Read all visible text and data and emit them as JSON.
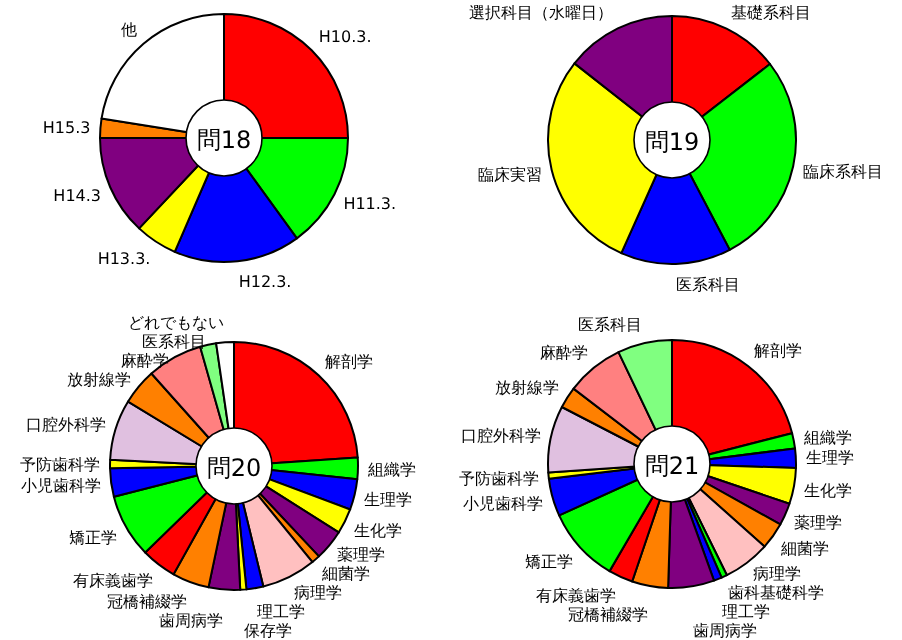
{
  "chart_data": [
    {
      "type": "donut",
      "title": "問18",
      "categories": [
        "H10.3.",
        "H11.3.",
        "H12.3.",
        "H13.3.",
        "H14.3",
        "H15.3",
        "他"
      ],
      "values": [
        25,
        15,
        16.5,
        5.5,
        13,
        2.5,
        22.5
      ],
      "colors": [
        "#ff0000",
        "#00ff00",
        "#0000ff",
        "#ffff00",
        "#800080",
        "#ff8000",
        "#ffffff"
      ]
    },
    {
      "type": "donut",
      "title": "問19",
      "categories": [
        "基礎系科目",
        "臨床系科目",
        "医系科目",
        "臨床実習",
        "選択科目（水曜日）"
      ],
      "values": [
        14.5,
        27.8,
        14.4,
        28.9,
        14.4
      ],
      "colors": [
        "#ff0000",
        "#00ff00",
        "#0000ff",
        "#ffff00",
        "#800080"
      ]
    },
    {
      "type": "donut",
      "title": "問20",
      "categories": [
        "解剖学",
        "組織学",
        "生理学",
        "生化学",
        "薬理学",
        "細菌学",
        "病理学",
        "理工学",
        "保存学",
        "歯周病学",
        "冠橋補綴学",
        "有床義歯学",
        "矯正学",
        "小児歯科学",
        "予防歯科学",
        "口腔外科学",
        "放射線学",
        "麻酔学",
        "医系科目",
        "どれでもない"
      ],
      "values": [
        23.9,
        2.8,
        4,
        3.3,
        4,
        1.1,
        7.1,
        2.2,
        0.8,
        4.1,
        4.8,
        4.6,
        8.3,
        3.7,
        1.1,
        7.9,
        4.7,
        7.2,
        2.1,
        2.3
      ],
      "colors": [
        "#ff0000",
        "#00ff00",
        "#0000ff",
        "#ffff00",
        "#800080",
        "#ff8000",
        "#ffc0c0",
        "#0000ff",
        "#ffff00",
        "#800080",
        "#ff8000",
        "#ff0000",
        "#00ff00",
        "#0000ff",
        "#ffff00",
        "#e0c0e0",
        "#ff8000",
        "#ff8080",
        "#80ff80",
        "#ffffff"
      ]
    },
    {
      "type": "donut",
      "title": "問21",
      "categories": [
        "解剖学",
        "組織学",
        "生理学",
        "生化学",
        "薬理学",
        "細菌学",
        "病理学",
        "歯科基礎科学",
        "理工学",
        "歯周病学",
        "冠橋補綴学",
        "有床義歯学",
        "矯正学",
        "小児歯科学",
        "予防歯科学",
        "口腔外科学",
        "放射線学",
        "麻酔学",
        "医系科目"
      ],
      "values": [
        21,
        2,
        2.5,
        4.7,
        2.9,
        3.5,
        6.1,
        0.75,
        1.05,
        6,
        4.7,
        3.2,
        9.8,
        4.9,
        0.8,
        8.7,
        2.8,
        7.5,
        7.1
      ],
      "colors": [
        "#ff0000",
        "#00ff00",
        "#0000ff",
        "#ffff00",
        "#800080",
        "#ff8000",
        "#ffc0c0",
        "#00ff00",
        "#0000ff",
        "#800080",
        "#ff8000",
        "#ff0000",
        "#00ff00",
        "#0000ff",
        "#ffff00",
        "#e0c0e0",
        "#ff8000",
        "#ff8080",
        "#80ff80"
      ]
    }
  ]
}
